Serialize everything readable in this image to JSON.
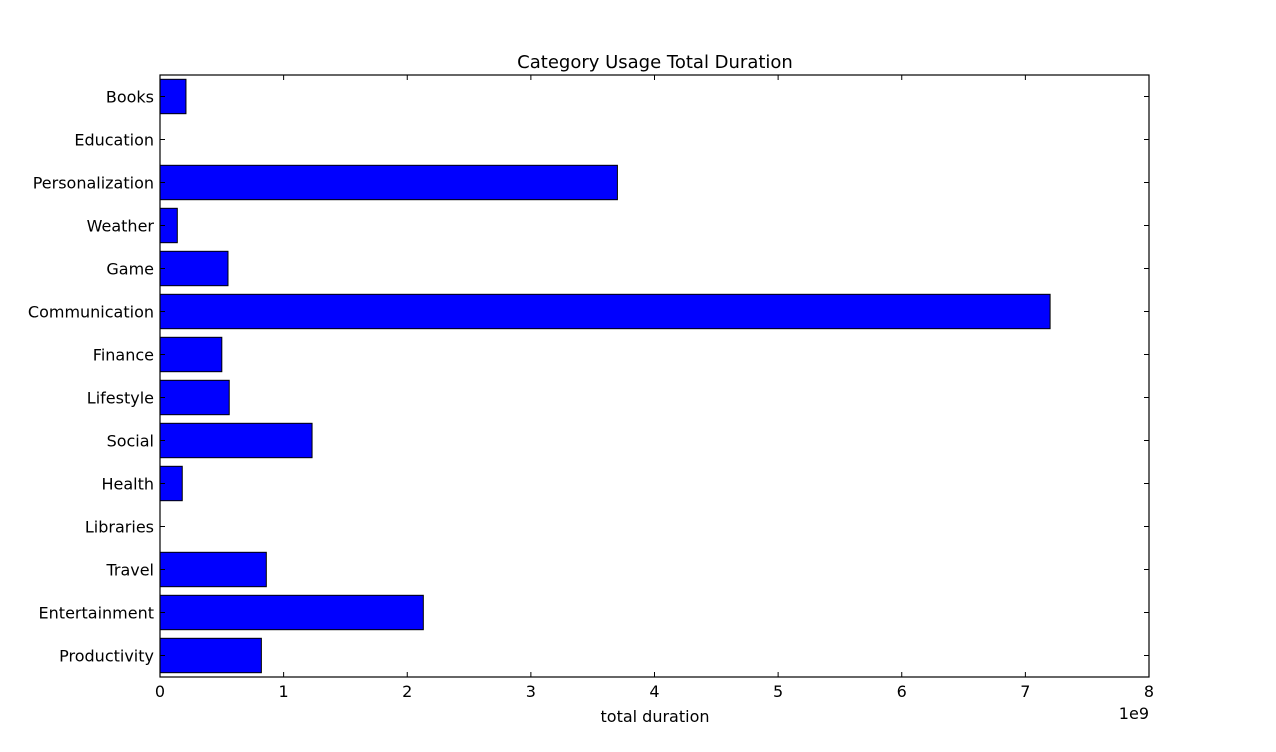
{
  "chart_data": {
    "type": "bar",
    "orientation": "horizontal",
    "title": "Category Usage Total Duration",
    "xlabel": "total duration",
    "ylabel": "",
    "x_scale_label": "1e9",
    "xlim": [
      0,
      8
    ],
    "x_ticks": [
      0,
      1,
      2,
      3,
      4,
      5,
      6,
      7,
      8
    ],
    "x_tick_labels": [
      "0",
      "1",
      "2",
      "3",
      "4",
      "5",
      "6",
      "7",
      "8"
    ],
    "categories": [
      "Books",
      "Education",
      "Personalization",
      "Weather",
      "Game",
      "Communication",
      "Finance",
      "Lifestyle",
      "Social",
      "Health",
      "Libraries",
      "Travel",
      "Entertainment",
      "Productivity"
    ],
    "values": [
      0.21,
      0.0,
      3.7,
      0.14,
      0.55,
      7.2,
      0.5,
      0.56,
      1.23,
      0.18,
      0.0,
      0.86,
      2.13,
      0.82
    ],
    "grid": false,
    "bar_color": "#0000ff",
    "bar_edge_color": "#000000"
  }
}
